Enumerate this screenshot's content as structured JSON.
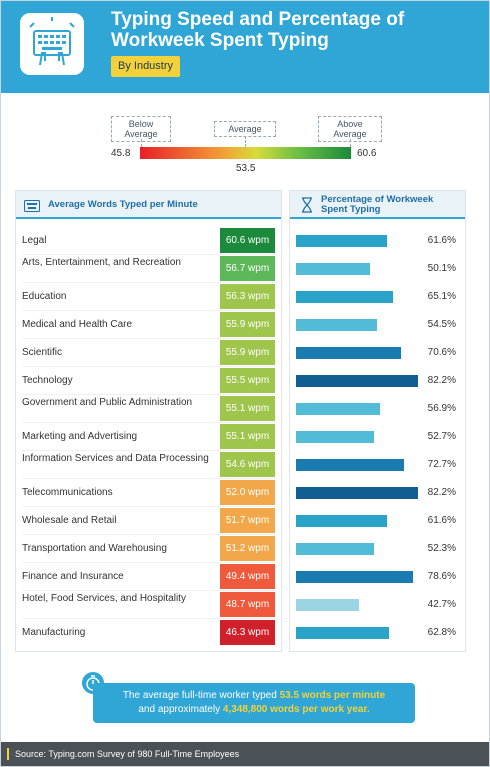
{
  "header": {
    "title": "Typing Speed and Percentage of Workweek Spent Typing",
    "subtitle": "By Industry",
    "icon": "keyboard-hands-icon"
  },
  "legend": {
    "below_label": "Below Average",
    "average_label": "Average",
    "above_label": "Above Average",
    "min": "45.8",
    "mid": "53.5",
    "max": "60.6"
  },
  "left_card": {
    "heading": "Average Words Typed per Minute",
    "icon": "keyboard-icon"
  },
  "right_card": {
    "heading": "Percentage of Workweek Spent Typing",
    "icon": "hourglass-icon"
  },
  "chart_data": {
    "type": "table",
    "columns": [
      "Industry",
      "Average Words Typed per Minute",
      "Percentage of Workweek Spent Typing"
    ],
    "rows": [
      {
        "industry": "Legal",
        "wpm": 60.6,
        "wpm_label": "60.6 wpm",
        "pct": 61.6,
        "pct_label": "61.6%"
      },
      {
        "industry": "Arts, Entertainment, and Recreation",
        "wpm": 56.7,
        "wpm_label": "56.7 wpm",
        "pct": 50.1,
        "pct_label": "50.1%"
      },
      {
        "industry": "Education",
        "wpm": 56.3,
        "wpm_label": "56.3 wpm",
        "pct": 65.1,
        "pct_label": "65.1%"
      },
      {
        "industry": "Medical and Health Care",
        "wpm": 55.9,
        "wpm_label": "55.9 wpm",
        "pct": 54.5,
        "pct_label": "54.5%"
      },
      {
        "industry": "Scientific",
        "wpm": 55.9,
        "wpm_label": "55.9 wpm",
        "pct": 70.6,
        "pct_label": "70.6%"
      },
      {
        "industry": "Technology",
        "wpm": 55.5,
        "wpm_label": "55.5 wpm",
        "pct": 82.2,
        "pct_label": "82.2%"
      },
      {
        "industry": "Government and Public Administration",
        "wpm": 55.1,
        "wpm_label": "55.1 wpm",
        "pct": 56.9,
        "pct_label": "56.9%"
      },
      {
        "industry": "Marketing and Advertising",
        "wpm": 55.1,
        "wpm_label": "55.1 wpm",
        "pct": 52.7,
        "pct_label": "52.7%"
      },
      {
        "industry": "Information Services and Data Processing",
        "wpm": 54.6,
        "wpm_label": "54.6 wpm",
        "pct": 72.7,
        "pct_label": "72.7%"
      },
      {
        "industry": "Telecommunications",
        "wpm": 52.0,
        "wpm_label": "52.0 wpm",
        "pct": 82.2,
        "pct_label": "82.2%"
      },
      {
        "industry": "Wholesale and Retail",
        "wpm": 51.7,
        "wpm_label": "51.7 wpm",
        "pct": 61.6,
        "pct_label": "61.6%"
      },
      {
        "industry": "Transportation and Warehousing",
        "wpm": 51.2,
        "wpm_label": "51.2 wpm",
        "pct": 52.3,
        "pct_label": "52.3%"
      },
      {
        "industry": "Finance and Insurance",
        "wpm": 49.4,
        "wpm_label": "49.4 wpm",
        "pct": 78.6,
        "pct_label": "78.6%"
      },
      {
        "industry": "Hotel, Food Services, and Hospitality",
        "wpm": 48.7,
        "wpm_label": "48.7 wpm",
        "pct": 42.7,
        "pct_label": "42.7%"
      },
      {
        "industry": "Manufacturing",
        "wpm": 46.3,
        "wpm_label": "46.3 wpm",
        "pct": 62.8,
        "pct_label": "62.8%"
      }
    ],
    "wpm_scale": {
      "min": 45.8,
      "average": 53.5,
      "max": 60.6
    },
    "pct_scale_max": 82.2
  },
  "callout": {
    "text_1": "The average full-time worker typed ",
    "highlight_1": "53.5 words per minute",
    "text_2": "and approximately ",
    "highlight_2": "4,348,800 words per work year.",
    "icon": "stopwatch-icon"
  },
  "footer": {
    "source": "Source: Typing.com Survey of 980 Full-Time Employees"
  },
  "colors": {
    "brand_blue": "#2fa6d5",
    "accent_yellow": "#f3d13a",
    "wpm_scale": [
      "#d0202b",
      "#ee5a3b",
      "#f5923e",
      "#f2a84a",
      "#9fc54d",
      "#5db85a",
      "#1c8a3c"
    ]
  }
}
